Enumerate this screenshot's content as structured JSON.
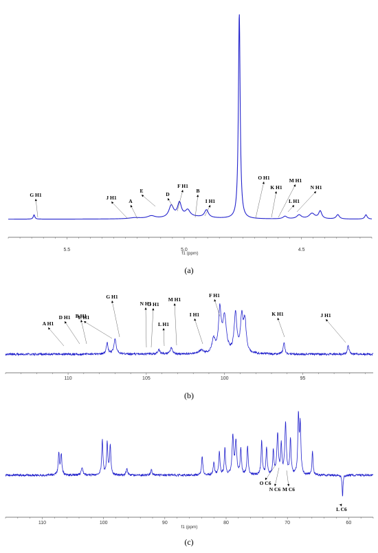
{
  "chart_data": [
    {
      "type": "line",
      "panel_label": "(a)",
      "xlabel": "f1 (ppm)",
      "xlim": [
        5.75,
        4.2
      ],
      "x_reversed": true,
      "ticks": [
        "5.5",
        "5.0",
        "4.5"
      ],
      "tick_values": [
        5.5,
        5.0,
        4.5
      ],
      "series_color": "#2222cc",
      "baseline": 0,
      "ylim": [
        -0.02,
        1.0
      ],
      "peaks": [
        {
          "x": 5.64,
          "h": 0.02,
          "w": 0.004
        },
        {
          "x": 5.21,
          "h": 0.005,
          "w": 0.03
        },
        {
          "x": 5.14,
          "h": 0.012,
          "w": 0.02
        },
        {
          "x": 5.055,
          "h": 0.055,
          "w": 0.012
        },
        {
          "x": 5.02,
          "h": 0.065,
          "w": 0.01
        },
        {
          "x": 4.985,
          "h": 0.03,
          "w": 0.012
        },
        {
          "x": 4.905,
          "h": 0.035,
          "w": 0.01
        },
        {
          "x": 4.765,
          "h": 0.95,
          "w": 0.0045
        },
        {
          "x": 4.57,
          "h": 0.012,
          "w": 0.01
        },
        {
          "x": 4.51,
          "h": 0.018,
          "w": 0.012
        },
        {
          "x": 4.455,
          "h": 0.025,
          "w": 0.015
        },
        {
          "x": 4.42,
          "h": 0.035,
          "w": 0.008
        },
        {
          "x": 4.345,
          "h": 0.02,
          "w": 0.008
        },
        {
          "x": 4.225,
          "h": 0.02,
          "w": 0.006
        }
      ],
      "annotations": [
        {
          "label": "G H1",
          "x": 5.64
        },
        {
          "label": "J H1",
          "x": 5.22
        },
        {
          "label": "A",
          "x": 5.19
        },
        {
          "label": "E",
          "x": 5.07
        },
        {
          "label": "D",
          "x": 5.01
        },
        {
          "label": "F H1",
          "x": 4.985
        },
        {
          "label": "B",
          "x": 4.935
        },
        {
          "label": "I H1",
          "x": 4.885
        },
        {
          "label": "O H1",
          "x": 4.59
        },
        {
          "label": "K H1",
          "x": 4.56
        },
        {
          "label": "M H1",
          "x": 4.51
        },
        {
          "label": "L H1",
          "x": 4.46
        },
        {
          "label": "N H1",
          "x": 4.42
        }
      ]
    },
    {
      "type": "line",
      "panel_label": "(b)",
      "xlabel": "",
      "xlim": [
        114,
        90.5
      ],
      "x_reversed": true,
      "ticks": [
        "110",
        "105",
        "100",
        "95"
      ],
      "tick_values": [
        110,
        105,
        100,
        95
      ],
      "series_color": "#2222cc",
      "baseline": 0,
      "ylim": [
        -0.05,
        1.0
      ],
      "noise": 0.03,
      "peaks": [
        {
          "x": 107.5,
          "h": 0.16,
          "w": 0.07
        },
        {
          "x": 107.0,
          "h": 0.22,
          "w": 0.09
        },
        {
          "x": 104.2,
          "h": 0.06,
          "w": 0.1
        },
        {
          "x": 103.4,
          "h": 0.1,
          "w": 0.08
        },
        {
          "x": 101.5,
          "h": 0.05,
          "w": 0.15
        },
        {
          "x": 100.7,
          "h": 0.2,
          "w": 0.12
        },
        {
          "x": 100.3,
          "h": 0.62,
          "w": 0.1
        },
        {
          "x": 100.0,
          "h": 0.52,
          "w": 0.14
        },
        {
          "x": 99.3,
          "h": 0.58,
          "w": 0.1
        },
        {
          "x": 98.9,
          "h": 0.5,
          "w": 0.1
        },
        {
          "x": 98.7,
          "h": 0.45,
          "w": 0.1
        },
        {
          "x": 96.2,
          "h": 0.18,
          "w": 0.06
        },
        {
          "x": 92.1,
          "h": 0.14,
          "w": 0.06
        }
      ],
      "annotations": [
        {
          "label": "A H1",
          "x": 110.5
        },
        {
          "label": "D H1",
          "x": 109.3
        },
        {
          "label": "B H1",
          "x": 108.8
        },
        {
          "label": "E H1",
          "x": 107.9
        },
        {
          "label": "G H1",
          "x": 107.2
        },
        {
          "label": "N H1",
          "x": 105.2
        },
        {
          "label": "O H1",
          "x": 104.7
        },
        {
          "label": "L H1",
          "x": 104.2
        },
        {
          "label": "M H1",
          "x": 103.4
        },
        {
          "label": "I H1",
          "x": 101.8
        },
        {
          "label": "F H1",
          "x": 100.3
        },
        {
          "label": "K H1",
          "x": 96.2
        },
        {
          "label": "J H1",
          "x": 92.1
        }
      ]
    },
    {
      "type": "line",
      "panel_label": "(c)",
      "xlabel": "f1 (ppm)",
      "xlim": [
        116,
        56
      ],
      "x_reversed": true,
      "ticks": [
        "110",
        "100",
        "90",
        "80",
        "70",
        "60"
      ],
      "tick_values": [
        110,
        100,
        90,
        80,
        70,
        60
      ],
      "series_color": "#2222cc",
      "baseline": 0,
      "ylim": [
        -0.35,
        1.0
      ],
      "noise": 0.03,
      "peaks": [
        {
          "x": 107.3,
          "h": 0.3,
          "w": 0.12
        },
        {
          "x": 106.9,
          "h": 0.28,
          "w": 0.12
        },
        {
          "x": 103.5,
          "h": 0.1,
          "w": 0.15
        },
        {
          "x": 100.2,
          "h": 0.48,
          "w": 0.12
        },
        {
          "x": 99.4,
          "h": 0.44,
          "w": 0.12
        },
        {
          "x": 98.9,
          "h": 0.4,
          "w": 0.12
        },
        {
          "x": 96.2,
          "h": 0.1,
          "w": 0.12
        },
        {
          "x": 92.2,
          "h": 0.08,
          "w": 0.12
        },
        {
          "x": 83.9,
          "h": 0.26,
          "w": 0.12
        },
        {
          "x": 82.0,
          "h": 0.18,
          "w": 0.12
        },
        {
          "x": 81.1,
          "h": 0.32,
          "w": 0.12
        },
        {
          "x": 80.2,
          "h": 0.36,
          "w": 0.12
        },
        {
          "x": 78.9,
          "h": 0.52,
          "w": 0.15
        },
        {
          "x": 78.4,
          "h": 0.46,
          "w": 0.15
        },
        {
          "x": 77.6,
          "h": 0.36,
          "w": 0.12
        },
        {
          "x": 76.5,
          "h": 0.4,
          "w": 0.12
        },
        {
          "x": 74.2,
          "h": 0.46,
          "w": 0.12
        },
        {
          "x": 73.4,
          "h": 0.36,
          "w": 0.12
        },
        {
          "x": 72.3,
          "h": 0.32,
          "w": 0.12
        },
        {
          "x": 71.6,
          "h": 0.56,
          "w": 0.15
        },
        {
          "x": 71.0,
          "h": 0.4,
          "w": 0.12
        },
        {
          "x": 70.3,
          "h": 0.7,
          "w": 0.15
        },
        {
          "x": 69.5,
          "h": 0.48,
          "w": 0.12
        },
        {
          "x": 68.2,
          "h": 0.8,
          "w": 0.12
        },
        {
          "x": 67.9,
          "h": 0.66,
          "w": 0.12
        },
        {
          "x": 65.9,
          "h": 0.34,
          "w": 0.1
        },
        {
          "x": 61.0,
          "h": -0.3,
          "w": 0.08
        }
      ],
      "annotations": [
        {
          "label": "O C6",
          "x": 72.3
        },
        {
          "label": "N C6",
          "x": 71.0
        },
        {
          "label": "M C6",
          "x": 70.2
        },
        {
          "label": "L C6",
          "x": 61.0
        }
      ]
    }
  ]
}
